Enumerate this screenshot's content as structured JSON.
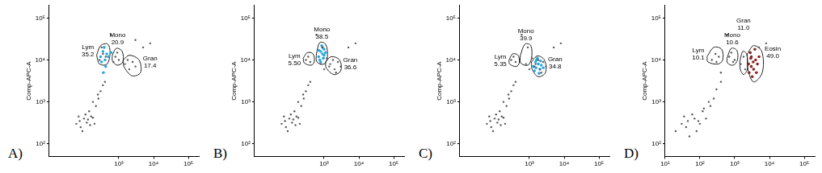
{
  "chart_data": [
    {
      "type": "scatter",
      "title": "A)",
      "y_label": "Comp-APC-A",
      "log": true,
      "grid": false,
      "xlim": [
        10,
        200000
      ],
      "xticks": [
        {
          "value": 1000,
          "label": "10³"
        },
        {
          "value": 10000,
          "label": "10⁴"
        },
        {
          "value": 100000,
          "label": "10⁵"
        }
      ],
      "ylim": [
        50,
        200000
      ],
      "yticks": [
        {
          "value": 100,
          "label": "10²"
        },
        {
          "value": 1000,
          "label": "10³"
        },
        {
          "value": 10000,
          "label": "10⁴"
        },
        {
          "value": 100000,
          "label": "10⁵"
        }
      ],
      "series": [
        {
          "color": "#5a5a5a",
          "x": [
            60,
            80,
            100,
            120,
            70,
            150,
            90,
            110,
            130,
            180,
            200,
            75,
            140,
            160,
            220,
            260,
            300,
            350,
            250,
            400,
            180,
            280,
            350,
            320,
            420,
            800,
            900,
            1000,
            700,
            1500,
            2000,
            2500,
            3000,
            1800,
            5000,
            8000,
            3000,
            600
          ],
          "values": [
            300,
            250,
            400,
            320,
            450,
            280,
            200,
            500,
            380,
            420,
            300,
            350,
            600,
            450,
            800,
            1200,
            1800,
            2500,
            1500,
            3000,
            1000,
            10000,
            14000,
            20000,
            12000,
            12000,
            15000,
            10000,
            9000,
            8000,
            6000,
            9000,
            7000,
            10000,
            20000,
            25000,
            30000,
            40000
          ]
        },
        {
          "color": "#29a8e0",
          "x": [
            300,
            350,
            400,
            450,
            380,
            320,
            500,
            420,
            360,
            600
          ],
          "values": [
            12000,
            16000,
            10000,
            14000,
            20000,
            9000,
            12000,
            7000,
            5000,
            15000
          ]
        }
      ],
      "gates": [
        {
          "label": "Lym",
          "value": 35.2,
          "x": [
            230,
            300,
            480,
            560,
            460,
            280
          ],
          "y": [
            13000,
            22000,
            24000,
            15000,
            8000,
            8000
          ]
        },
        {
          "label": "Mono",
          "value": 20.9,
          "x": [
            650,
            850,
            1250,
            1300,
            900,
            660
          ],
          "y": [
            13000,
            19000,
            16000,
            9000,
            7500,
            9500
          ]
        },
        {
          "label": "Gran",
          "value": 17.4,
          "x": [
            1350,
            2000,
            3800,
            4200,
            2400,
            1400
          ],
          "y": [
            10000,
            13000,
            10000,
            5000,
            4200,
            7000
          ]
        }
      ]
    },
    {
      "type": "scatter",
      "title": "B)",
      "y_label": "Comp-APC-A",
      "log": true,
      "grid": false,
      "xlim": [
        10,
        200000
      ],
      "xticks": [
        {
          "value": 1000,
          "label": "10³"
        },
        {
          "value": 10000,
          "label": "10⁴"
        },
        {
          "value": 100000,
          "label": "10⁵"
        }
      ],
      "ylim": [
        50,
        200000
      ],
      "yticks": [
        {
          "value": 100,
          "label": "10²"
        },
        {
          "value": 1000,
          "label": "10³"
        },
        {
          "value": 10000,
          "label": "10⁴"
        },
        {
          "value": 100000,
          "label": "10⁵"
        }
      ],
      "series": [
        {
          "color": "#5a5a5a",
          "x": [
            60,
            80,
            100,
            120,
            70,
            150,
            90,
            110,
            130,
            180,
            200,
            75,
            140,
            160,
            220,
            260,
            300,
            350,
            250,
            400,
            180,
            300,
            350,
            400,
            800,
            900,
            1000,
            1500,
            2000,
            2500,
            3000,
            1800,
            1200,
            5000,
            8000,
            600,
            2200,
            1400
          ],
          "values": [
            300,
            250,
            400,
            320,
            450,
            280,
            200,
            500,
            380,
            420,
            300,
            350,
            600,
            450,
            800,
            1200,
            1800,
            2500,
            1500,
            3000,
            1000,
            10000,
            12000,
            9000,
            8000,
            20000,
            6000,
            8000,
            6000,
            9000,
            7000,
            10000,
            11000,
            20000,
            25000,
            40000,
            5000,
            7000
          ]
        },
        {
          "color": "#29a8e0",
          "x": [
            700,
            800,
            900,
            1000,
            850,
            750,
            950,
            1100,
            800,
            900,
            700,
            1000
          ],
          "values": [
            12000,
            16000,
            14000,
            18000,
            22000,
            10000,
            11000,
            15000,
            9000,
            20000,
            17000,
            13000
          ]
        }
      ],
      "gates": [
        {
          "label": "Lym",
          "value": 5.5,
          "value_label": "5.50",
          "x": [
            250,
            330,
            480,
            520,
            420,
            270
          ],
          "y": [
            11000,
            15000,
            14000,
            9000,
            7500,
            8500
          ]
        },
        {
          "label": "Mono",
          "value": 38.5,
          "x": [
            600,
            750,
            1100,
            1250,
            1000,
            620
          ],
          "y": [
            14000,
            26000,
            24000,
            12000,
            8000,
            9000
          ]
        },
        {
          "label": "Gran",
          "value": 36.6,
          "x": [
            1100,
            1600,
            2800,
            3000,
            1900,
            1150
          ],
          "y": [
            9000,
            12000,
            10000,
            5500,
            4500,
            6500
          ]
        }
      ]
    },
    {
      "type": "scatter",
      "title": "C)",
      "y_label": "Comp-APC-A",
      "log": true,
      "grid": false,
      "xlim": [
        10,
        200000
      ],
      "xticks": [
        {
          "value": 1000,
          "label": "10³"
        },
        {
          "value": 10000,
          "label": "10⁴"
        },
        {
          "value": 100000,
          "label": "10⁵"
        }
      ],
      "ylim": [
        50,
        200000
      ],
      "yticks": [
        {
          "value": 100,
          "label": "10²"
        },
        {
          "value": 1000,
          "label": "10³"
        },
        {
          "value": 10000,
          "label": "10⁴"
        },
        {
          "value": 100000,
          "label": "10⁵"
        }
      ],
      "series": [
        {
          "color": "#5a5a5a",
          "x": [
            60,
            80,
            100,
            120,
            70,
            150,
            90,
            110,
            130,
            180,
            200,
            75,
            140,
            160,
            220,
            260,
            300,
            350,
            250,
            400,
            180,
            300,
            350,
            400,
            800,
            900,
            1000,
            1500,
            2000,
            2500,
            3000,
            1800,
            1200,
            5000,
            8000,
            600,
            2200,
            1400
          ],
          "values": [
            300,
            250,
            400,
            320,
            450,
            280,
            200,
            500,
            380,
            420,
            300,
            350,
            600,
            450,
            800,
            1200,
            1800,
            2500,
            1500,
            3000,
            1000,
            10000,
            12000,
            9000,
            8000,
            20000,
            6000,
            8000,
            6000,
            9000,
            7000,
            10000,
            11000,
            20000,
            25000,
            40000,
            5000,
            7000
          ]
        },
        {
          "color": "#29a8e0",
          "x": [
            1300,
            1500,
            1800,
            2000,
            1600,
            2200,
            1400,
            1700,
            2500,
            1900,
            2100,
            1550
          ],
          "values": [
            7000,
            9000,
            8000,
            6000,
            10000,
            7500,
            5500,
            11000,
            6500,
            4800,
            9500,
            6500
          ]
        }
      ],
      "gates": [
        {
          "label": "Lym",
          "value": 5.35,
          "x": [
            260,
            330,
            470,
            510,
            420,
            270
          ],
          "y": [
            10000,
            14000,
            13000,
            8500,
            7000,
            8000
          ]
        },
        {
          "label": "Mono",
          "value": 39.9,
          "x": [
            550,
            750,
            1100,
            1150,
            900,
            560
          ],
          "y": [
            13000,
            24000,
            22000,
            11000,
            7500,
            8500
          ]
        },
        {
          "label": "Gran",
          "value": 34.8,
          "x": [
            1150,
            1700,
            2700,
            2900,
            1800,
            1200
          ],
          "y": [
            9000,
            12500,
            10000,
            5000,
            4000,
            6000
          ]
        }
      ]
    },
    {
      "type": "scatter",
      "title": "D)",
      "y_label": "Comp-APC-A",
      "log": true,
      "grid": false,
      "xlim": [
        10,
        200000
      ],
      "xticks": [
        {
          "value": 10,
          "label": "10¹"
        },
        {
          "value": 100,
          "label": "10²"
        },
        {
          "value": 1000,
          "label": "10³"
        },
        {
          "value": 10000,
          "label": "10⁴"
        },
        {
          "value": 100000,
          "label": "10⁵"
        }
      ],
      "ylim": [
        50,
        200000
      ],
      "yticks": [
        {
          "value": 100,
          "label": "10²"
        },
        {
          "value": 1000,
          "label": "10³"
        },
        {
          "value": 10000,
          "label": "10⁴"
        },
        {
          "value": 100000,
          "label": "10⁵"
        }
      ],
      "series": [
        {
          "color": "#5a5a5a",
          "x": [
            20,
            30,
            50,
            70,
            40,
            90,
            60,
            100,
            35,
            80,
            120,
            150,
            45,
            200,
            250,
            300,
            180,
            400,
            220,
            280,
            350,
            300,
            700,
            800,
            1000,
            900,
            1500,
            1800,
            2000,
            5000,
            8000,
            600,
            400,
            130
          ],
          "values": [
            200,
            300,
            150,
            400,
            250,
            350,
            500,
            300,
            450,
            200,
            600,
            400,
            350,
            800,
            1200,
            2000,
            1000,
            3000,
            10000,
            14000,
            12000,
            9000,
            12000,
            15000,
            10000,
            9000,
            8000,
            12000,
            6000,
            20000,
            25000,
            40000,
            5000,
            700
          ]
        },
        {
          "color": "#8b2323",
          "x": [
            2500,
            3000,
            3500,
            4000,
            2800,
            3200,
            4500,
            3800,
            2600,
            3400,
            5000,
            3000,
            4200,
            2900
          ],
          "values": [
            8000,
            12000,
            6000,
            10000,
            15000,
            4000,
            8000,
            18000,
            5000,
            9000,
            12000,
            7000,
            5000,
            11000
          ]
        }
      ],
      "gates": [
        {
          "label": "Lym",
          "value": 10.1,
          "x": [
            160,
            250,
            420,
            450,
            330,
            170
          ],
          "y": [
            12000,
            20000,
            18000,
            10000,
            8000,
            9000
          ]
        },
        {
          "label": "Mono",
          "value": 10.6,
          "x": [
            600,
            800,
            1150,
            1200,
            900,
            620
          ],
          "y": [
            11000,
            19000,
            17000,
            10000,
            7500,
            8500
          ]
        },
        {
          "label": "Gran",
          "value": 11.0,
          "value_label": "11.0",
          "x": [
            1400,
            1700,
            2200,
            2300,
            1800,
            1450
          ],
          "y": [
            9000,
            16000,
            14000,
            6000,
            4500,
            6000
          ]
        },
        {
          "label": "Eosin",
          "value": 49.0,
          "value_label": "49.0",
          "x": [
            2300,
            3500,
            6000,
            6200,
            3500,
            2400
          ],
          "y": [
            14000,
            22000,
            16000,
            5000,
            3000,
            6000
          ]
        }
      ]
    }
  ]
}
